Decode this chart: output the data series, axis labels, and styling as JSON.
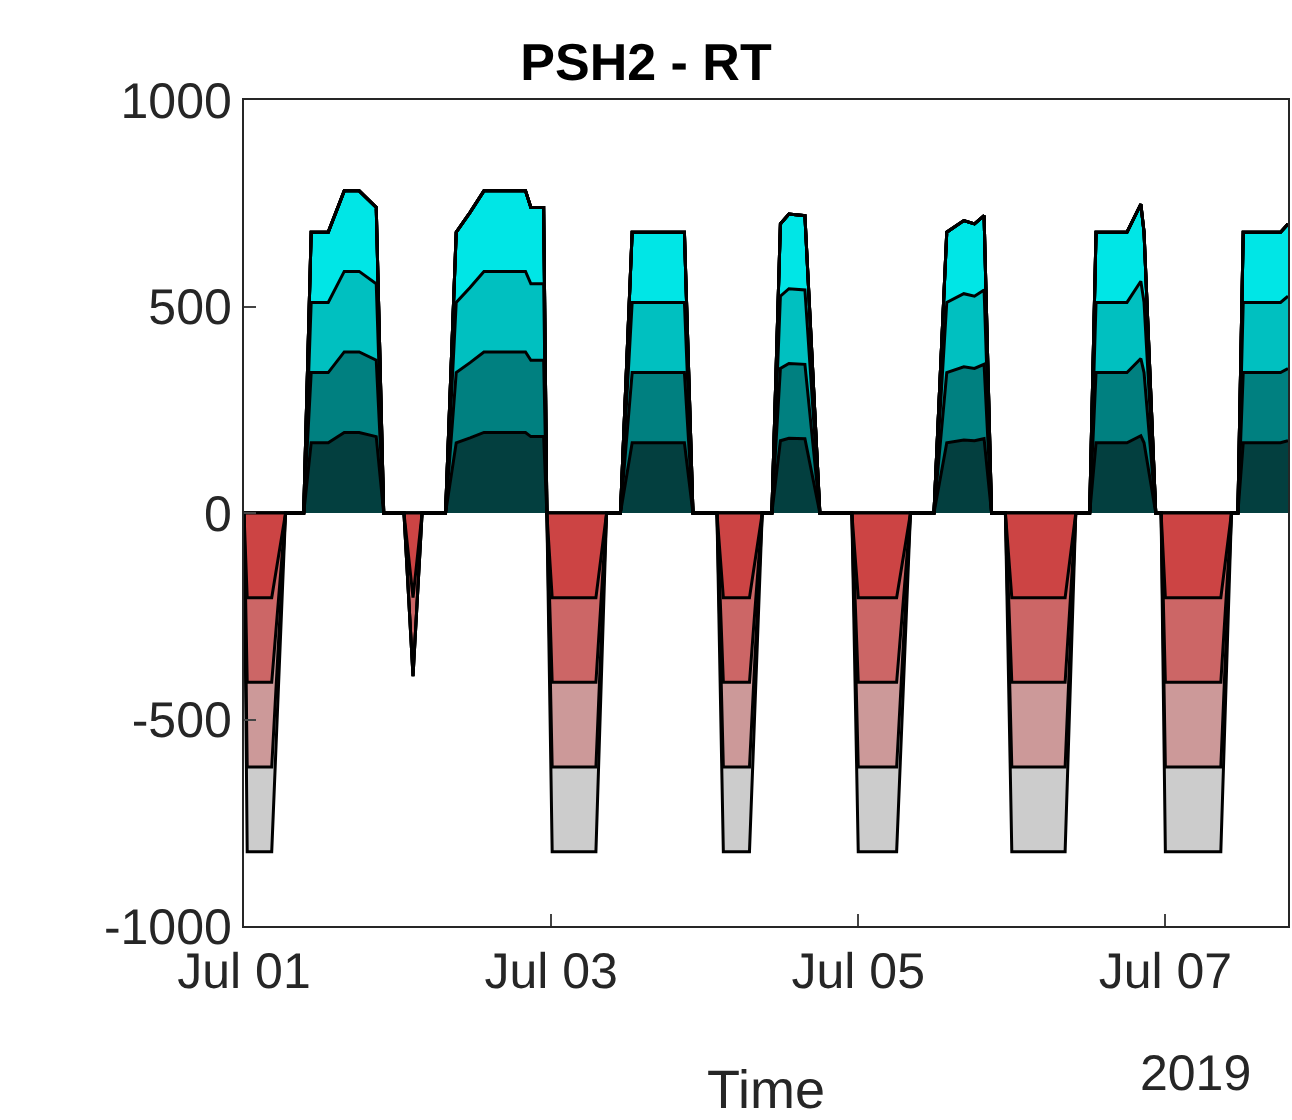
{
  "chart_data": {
    "type": "area",
    "stacked": true,
    "title": "PSH2 - RT",
    "xlabel": "Time",
    "annotations": [
      "2019"
    ],
    "xlim": [
      "2019-07-01T00:00",
      "2019-07-07T19:10"
    ],
    "xticks": [
      {
        "value": "2019-07-01",
        "label": "Jul 01"
      },
      {
        "value": "2019-07-03",
        "label": "Jul 03"
      },
      {
        "value": "2019-07-05",
        "label": "Jul 05"
      },
      {
        "value": "2019-07-07",
        "label": "Jul 07"
      }
    ],
    "ylim": [
      -1000,
      1000
    ],
    "yticks": [
      -1000,
      -500,
      0,
      500,
      1000
    ],
    "x": [
      "2019-07-01T00:00",
      "2019-07-01T00:30",
      "2019-07-01T02:25",
      "2019-07-01T04:20",
      "2019-07-01T06:30",
      "2019-07-01T09:20",
      "2019-07-01T10:30",
      "2019-07-01T13:10",
      "2019-07-01T15:40",
      "2019-07-01T18:00",
      "2019-07-01T20:40",
      "2019-07-01T21:50",
      "2019-07-02T01:00",
      "2019-07-02T02:25",
      "2019-07-02T03:50",
      "2019-07-02T07:30",
      "2019-07-02T09:10",
      "2019-07-02T11:20",
      "2019-07-02T13:30",
      "2019-07-02T20:00",
      "2019-07-02T20:50",
      "2019-07-02T22:50",
      "2019-07-02T23:20",
      "2019-07-03T00:10",
      "2019-07-03T03:25",
      "2019-07-03T07:00",
      "2019-07-03T08:40",
      "2019-07-03T10:50",
      "2019-07-03T12:40",
      "2019-07-03T20:50",
      "2019-07-03T22:10",
      "2019-07-04T01:55",
      "2019-07-04T02:55",
      "2019-07-04T05:00",
      "2019-07-04T07:00",
      "2019-07-04T09:00",
      "2019-07-04T10:30",
      "2019-07-04T11:50",
      "2019-07-04T13:10",
      "2019-07-04T15:40",
      "2019-07-04T18:00",
      "2019-07-04T23:00",
      "2019-07-05T00:00",
      "2019-07-05T03:00",
      "2019-07-05T06:00",
      "2019-07-05T08:10",
      "2019-07-05T11:50",
      "2019-07-05T13:50",
      "2019-07-05T16:30",
      "2019-07-05T18:10",
      "2019-07-05T19:40",
      "2019-07-05T20:50",
      "2019-07-05T23:00",
      "2019-07-06T00:00",
      "2019-07-06T04:10",
      "2019-07-06T08:20",
      "2019-07-06T10:00",
      "2019-07-06T12:10",
      "2019-07-06T13:10",
      "2019-07-06T18:00",
      "2019-07-06T20:10",
      "2019-07-06T20:40",
      "2019-07-06T22:30",
      "2019-07-06T23:20",
      "2019-07-07T00:00",
      "2019-07-07T04:20",
      "2019-07-07T08:40",
      "2019-07-07T10:20",
      "2019-07-07T11:20",
      "2019-07-07T12:10",
      "2019-07-07T18:00",
      "2019-07-07T19:10"
    ],
    "series": [
      {
        "color": "#033f3f",
        "values": [
          0,
          0,
          0,
          0,
          0,
          0,
          170,
          170,
          195,
          195,
          185,
          0,
          0,
          0,
          0,
          0,
          170,
          182,
          195,
          195,
          185,
          185,
          0,
          0,
          0,
          0,
          0,
          0,
          170,
          170,
          0,
          0,
          0,
          0,
          0,
          0,
          0,
          175,
          181,
          180,
          0,
          0,
          0,
          0,
          0,
          0,
          0,
          170,
          177,
          175,
          180,
          0,
          0,
          0,
          0,
          0,
          0,
          0,
          170,
          170,
          187,
          170,
          0,
          0,
          0,
          0,
          0,
          0,
          0,
          170,
          170,
          175
        ]
      },
      {
        "color": "#008080",
        "values": [
          0,
          0,
          0,
          0,
          0,
          0,
          170,
          170,
          195,
          195,
          185,
          0,
          0,
          0,
          0,
          0,
          170,
          182,
          195,
          195,
          185,
          185,
          0,
          0,
          0,
          0,
          0,
          0,
          170,
          170,
          0,
          0,
          0,
          0,
          0,
          0,
          0,
          175,
          181,
          180,
          0,
          0,
          0,
          0,
          0,
          0,
          0,
          170,
          177,
          175,
          180,
          0,
          0,
          0,
          0,
          0,
          0,
          0,
          170,
          170,
          187,
          170,
          0,
          0,
          0,
          0,
          0,
          0,
          0,
          170,
          170,
          175
        ]
      },
      {
        "color": "#00c0c0",
        "values": [
          0,
          0,
          0,
          0,
          0,
          0,
          170,
          170,
          195,
          195,
          185,
          0,
          0,
          0,
          0,
          0,
          170,
          182,
          195,
          195,
          185,
          185,
          0,
          0,
          0,
          0,
          0,
          0,
          170,
          170,
          0,
          0,
          0,
          0,
          0,
          0,
          0,
          175,
          181,
          180,
          0,
          0,
          0,
          0,
          0,
          0,
          0,
          170,
          177,
          175,
          180,
          0,
          0,
          0,
          0,
          0,
          0,
          0,
          170,
          170,
          187,
          170,
          0,
          0,
          0,
          0,
          0,
          0,
          0,
          170,
          170,
          175
        ]
      },
      {
        "color": "#00e6e6",
        "values": [
          0,
          0,
          0,
          0,
          0,
          0,
          170,
          170,
          195,
          195,
          185,
          0,
          0,
          0,
          0,
          0,
          170,
          182,
          195,
          195,
          185,
          185,
          0,
          0,
          0,
          0,
          0,
          0,
          170,
          170,
          0,
          0,
          0,
          0,
          0,
          0,
          0,
          175,
          181,
          180,
          0,
          0,
          0,
          0,
          0,
          0,
          0,
          170,
          177,
          175,
          180,
          0,
          0,
          0,
          0,
          0,
          0,
          0,
          170,
          170,
          187,
          170,
          0,
          0,
          0,
          0,
          0,
          0,
          0,
          170,
          170,
          175
        ]
      },
      {
        "color": "#cc4444",
        "values": [
          0,
          -205,
          -205,
          -205,
          0,
          0,
          0,
          0,
          0,
          0,
          0,
          0,
          0,
          -205,
          0,
          0,
          0,
          0,
          0,
          0,
          0,
          0,
          0,
          -205,
          -205,
          -205,
          0,
          0,
          0,
          0,
          0,
          0,
          -205,
          -205,
          -205,
          0,
          0,
          0,
          0,
          0,
          0,
          0,
          -205,
          -205,
          -205,
          0,
          0,
          0,
          0,
          0,
          0,
          0,
          0,
          -205,
          -205,
          -205,
          0,
          0,
          0,
          0,
          0,
          0,
          0,
          0,
          -205,
          -205,
          -205,
          0,
          0,
          0,
          0,
          0
        ]
      },
      {
        "color": "#cc6666",
        "values": [
          0,
          -205,
          -205,
          -205,
          0,
          0,
          0,
          0,
          0,
          0,
          0,
          0,
          0,
          -190,
          0,
          0,
          0,
          0,
          0,
          0,
          0,
          0,
          0,
          -205,
          -205,
          -205,
          0,
          0,
          0,
          0,
          0,
          0,
          -205,
          -205,
          -205,
          0,
          0,
          0,
          0,
          0,
          0,
          0,
          -205,
          -205,
          -205,
          0,
          0,
          0,
          0,
          0,
          0,
          0,
          0,
          -205,
          -205,
          -205,
          0,
          0,
          0,
          0,
          0,
          0,
          0,
          0,
          -205,
          -205,
          -205,
          0,
          0,
          0,
          0,
          0
        ]
      },
      {
        "color": "#cc9999",
        "values": [
          0,
          -205,
          -205,
          -205,
          0,
          0,
          0,
          0,
          0,
          0,
          0,
          0,
          0,
          0,
          0,
          0,
          0,
          0,
          0,
          0,
          0,
          0,
          0,
          -205,
          -205,
          -205,
          0,
          0,
          0,
          0,
          0,
          0,
          -205,
          -205,
          -205,
          0,
          0,
          0,
          0,
          0,
          0,
          0,
          -205,
          -205,
          -205,
          0,
          0,
          0,
          0,
          0,
          0,
          0,
          0,
          -205,
          -205,
          -205,
          0,
          0,
          0,
          0,
          0,
          0,
          0,
          0,
          -205,
          -205,
          -205,
          0,
          0,
          0,
          0,
          0
        ]
      },
      {
        "color": "#cccccc",
        "values": [
          0,
          -205,
          -205,
          -205,
          0,
          0,
          0,
          0,
          0,
          0,
          0,
          0,
          0,
          0,
          0,
          0,
          0,
          0,
          0,
          0,
          0,
          0,
          0,
          -205,
          -205,
          -205,
          0,
          0,
          0,
          0,
          0,
          0,
          -205,
          -205,
          -205,
          0,
          0,
          0,
          0,
          0,
          0,
          0,
          -205,
          -205,
          -205,
          0,
          0,
          0,
          0,
          0,
          0,
          0,
          0,
          -205,
          -205,
          -205,
          0,
          0,
          0,
          0,
          0,
          0,
          0,
          0,
          -205,
          -205,
          -205,
          0,
          0,
          0,
          0,
          0
        ]
      }
    ]
  }
}
